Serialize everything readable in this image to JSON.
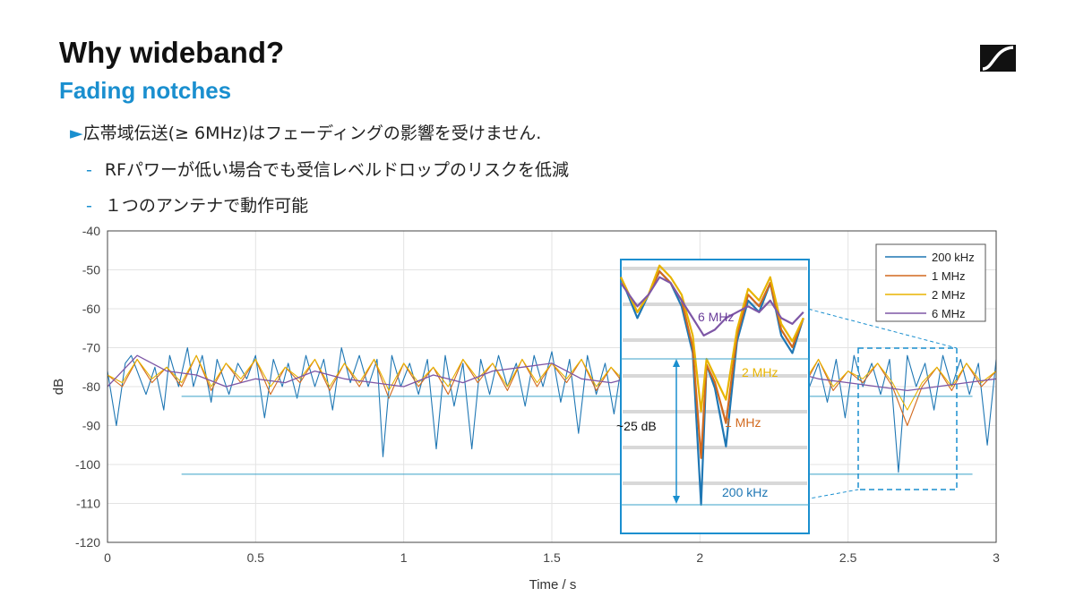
{
  "slide": {
    "title": "Why wideband?",
    "subtitle": "Fading notches",
    "bullet_main_marker": "►",
    "bullet_main": "広帯域伝送(≥ 6MHz)はフェーディングの影響を受けません.",
    "sub_marker": "-",
    "sub_bullets": [
      "RFパワーが低い場合でも受信レベルドロップのリスクを低減",
      "１つのアンテナで動作可能"
    ]
  },
  "colors": {
    "accent": "#1a8fcf",
    "s200k": "#1f77b4",
    "s1m": "#d2691e",
    "s2m": "#e8b400",
    "s6m": "#7e57a6"
  },
  "icons": {
    "logo": "sennheiser-logo-icon"
  },
  "chart_data": {
    "type": "line",
    "xlabel": "Time / s",
    "ylabel": "dB",
    "xlim": [
      0,
      3
    ],
    "ylim": [
      -120,
      -40
    ],
    "xticks": [
      0,
      0.5,
      1,
      1.5,
      2,
      2.5,
      3
    ],
    "xtick_labels": [
      "0",
      "0.5",
      "1",
      "1.5",
      "2",
      "2.5",
      "3"
    ],
    "yticks": [
      -40,
      -50,
      -60,
      -70,
      -80,
      -90,
      -100,
      -110,
      -120
    ],
    "ytick_labels": [
      "-40",
      "-50",
      "-60",
      "-70",
      "-80",
      "-90",
      "-100",
      "-110",
      "-120"
    ],
    "grid": true,
    "legend": "top-right",
    "series": [
      {
        "name": "200 kHz",
        "color": "#1f77b4",
        "x": [
          0,
          0.03,
          0.06,
          0.08,
          0.1,
          0.13,
          0.16,
          0.19,
          0.21,
          0.24,
          0.27,
          0.29,
          0.32,
          0.35,
          0.37,
          0.41,
          0.44,
          0.47,
          0.5,
          0.53,
          0.56,
          0.59,
          0.61,
          0.64,
          0.67,
          0.7,
          0.73,
          0.76,
          0.79,
          0.82,
          0.85,
          0.88,
          0.91,
          0.93,
          0.96,
          0.99,
          1.02,
          1.05,
          1.08,
          1.11,
          1.14,
          1.17,
          1.2,
          1.23,
          1.26,
          1.29,
          1.32,
          1.35,
          1.38,
          1.41,
          1.44,
          1.47,
          1.5,
          1.53,
          1.56,
          1.59,
          1.62,
          1.65,
          1.68,
          1.71,
          1.74,
          1.77,
          1.8,
          1.83,
          1.86,
          1.89,
          1.92,
          1.95,
          1.98,
          2.01,
          2.04,
          2.07,
          2.1,
          2.13,
          2.16,
          2.19,
          2.22,
          2.25,
          2.28,
          2.31,
          2.34,
          2.37,
          2.4,
          2.43,
          2.46,
          2.49,
          2.52,
          2.55,
          2.58,
          2.61,
          2.64,
          2.67,
          2.7,
          2.73,
          2.76,
          2.79,
          2.82,
          2.85,
          2.88,
          2.91,
          2.94,
          2.97,
          3
        ],
        "y": [
          -76,
          -90,
          -74,
          -72,
          -76,
          -82,
          -75,
          -86,
          -72,
          -80,
          -70,
          -80,
          -72,
          -84,
          -73,
          -82,
          -74,
          -78,
          -72,
          -88,
          -73,
          -80,
          -74,
          -83,
          -72,
          -80,
          -73,
          -86,
          -70,
          -79,
          -72,
          -80,
          -73,
          -98,
          -72,
          -80,
          -74,
          -82,
          -73,
          -96,
          -72,
          -85,
          -74,
          -96,
          -73,
          -82,
          -72,
          -80,
          -74,
          -85,
          -72,
          -80,
          -71,
          -84,
          -73,
          -92,
          -72,
          -82,
          -74,
          -87,
          -72,
          -80,
          -73,
          -84,
          -72,
          -80,
          -74,
          -79,
          -73,
          -110,
          -74,
          -85,
          -72,
          -80,
          -73,
          -84,
          -72,
          -81,
          -73,
          -86,
          -72,
          -80,
          -74,
          -84,
          -73,
          -88,
          -72,
          -80,
          -74,
          -82,
          -73,
          -102,
          -72,
          -80,
          -74,
          -86,
          -72,
          -80,
          -73,
          -82,
          -74,
          -95,
          -73
        ]
      },
      {
        "name": "1 MHz",
        "color": "#d2691e",
        "x": [
          0,
          0.05,
          0.1,
          0.15,
          0.2,
          0.25,
          0.3,
          0.35,
          0.4,
          0.45,
          0.5,
          0.55,
          0.6,
          0.65,
          0.7,
          0.75,
          0.8,
          0.85,
          0.9,
          0.95,
          1,
          1.05,
          1.1,
          1.15,
          1.2,
          1.25,
          1.3,
          1.35,
          1.4,
          1.45,
          1.5,
          1.55,
          1.6,
          1.65,
          1.7,
          1.75,
          1.8,
          1.85,
          1.9,
          1.95,
          2,
          2.05,
          2.1,
          2.15,
          2.2,
          2.25,
          2.3,
          2.35,
          2.4,
          2.45,
          2.5,
          2.55,
          2.6,
          2.65,
          2.7,
          2.75,
          2.8,
          2.85,
          2.9,
          2.95,
          3
        ],
        "y": [
          -77,
          -80,
          -73,
          -79,
          -75,
          -80,
          -72,
          -81,
          -74,
          -79,
          -73,
          -82,
          -75,
          -79,
          -73,
          -81,
          -74,
          -80,
          -73,
          -83,
          -74,
          -80,
          -75,
          -82,
          -73,
          -79,
          -74,
          -81,
          -73,
          -80,
          -74,
          -79,
          -73,
          -81,
          -75,
          -80,
          -74,
          -79,
          -73,
          -80,
          -95,
          -78,
          -74,
          -80,
          -73,
          -79,
          -74,
          -80,
          -73,
          -81,
          -76,
          -79,
          -74,
          -80,
          -90,
          -80,
          -75,
          -81,
          -74,
          -80,
          -76
        ]
      },
      {
        "name": "2 MHz",
        "color": "#e8b400",
        "x": [
          0,
          0.05,
          0.1,
          0.15,
          0.2,
          0.25,
          0.3,
          0.35,
          0.4,
          0.45,
          0.5,
          0.55,
          0.6,
          0.65,
          0.7,
          0.75,
          0.8,
          0.85,
          0.9,
          0.95,
          1,
          1.05,
          1.1,
          1.15,
          1.2,
          1.25,
          1.3,
          1.35,
          1.4,
          1.45,
          1.5,
          1.55,
          1.6,
          1.65,
          1.7,
          1.75,
          1.8,
          1.85,
          1.9,
          1.95,
          2,
          2.05,
          2.1,
          2.15,
          2.2,
          2.25,
          2.3,
          2.35,
          2.4,
          2.45,
          2.5,
          2.55,
          2.6,
          2.65,
          2.7,
          2.75,
          2.8,
          2.85,
          2.9,
          2.95,
          3
        ],
        "y": [
          -77,
          -79,
          -73,
          -78,
          -75,
          -79,
          -72,
          -80,
          -74,
          -78,
          -73,
          -80,
          -75,
          -78,
          -73,
          -80,
          -74,
          -79,
          -73,
          -81,
          -74,
          -79,
          -75,
          -80,
          -73,
          -78,
          -74,
          -80,
          -73,
          -79,
          -74,
          -78,
          -73,
          -80,
          -75,
          -79,
          -74,
          -78,
          -73,
          -79,
          -88,
          -77,
          -74,
          -79,
          -73,
          -78,
          -74,
          -79,
          -73,
          -80,
          -76,
          -78,
          -74,
          -79,
          -86,
          -79,
          -75,
          -80,
          -74,
          -79,
          -76
        ]
      },
      {
        "name": "6 MHz",
        "color": "#7e57a6",
        "x": [
          0,
          0.1,
          0.2,
          0.3,
          0.4,
          0.5,
          0.6,
          0.7,
          0.8,
          0.9,
          1,
          1.1,
          1.2,
          1.3,
          1.4,
          1.5,
          1.6,
          1.7,
          1.8,
          1.9,
          2,
          2.1,
          2.2,
          2.3,
          2.4,
          2.5,
          2.6,
          2.7,
          2.8,
          2.9,
          3
        ],
        "y": [
          -80,
          -72,
          -76,
          -77,
          -80,
          -78,
          -79,
          -76,
          -78,
          -79,
          -80,
          -77,
          -79,
          -76,
          -75,
          -74,
          -78,
          -79,
          -77,
          -78,
          -76,
          -75,
          -77,
          -76,
          -78,
          -79,
          -80,
          -81,
          -80,
          -79,
          -78
        ]
      }
    ],
    "reference_lines_db": [
      -82.5,
      -102.5
    ],
    "annotations": {
      "inset_labels": [
        "6 MHz",
        "2 MHz",
        "1 MHz",
        "200 kHz"
      ],
      "depth_label": "~25 dB"
    }
  }
}
